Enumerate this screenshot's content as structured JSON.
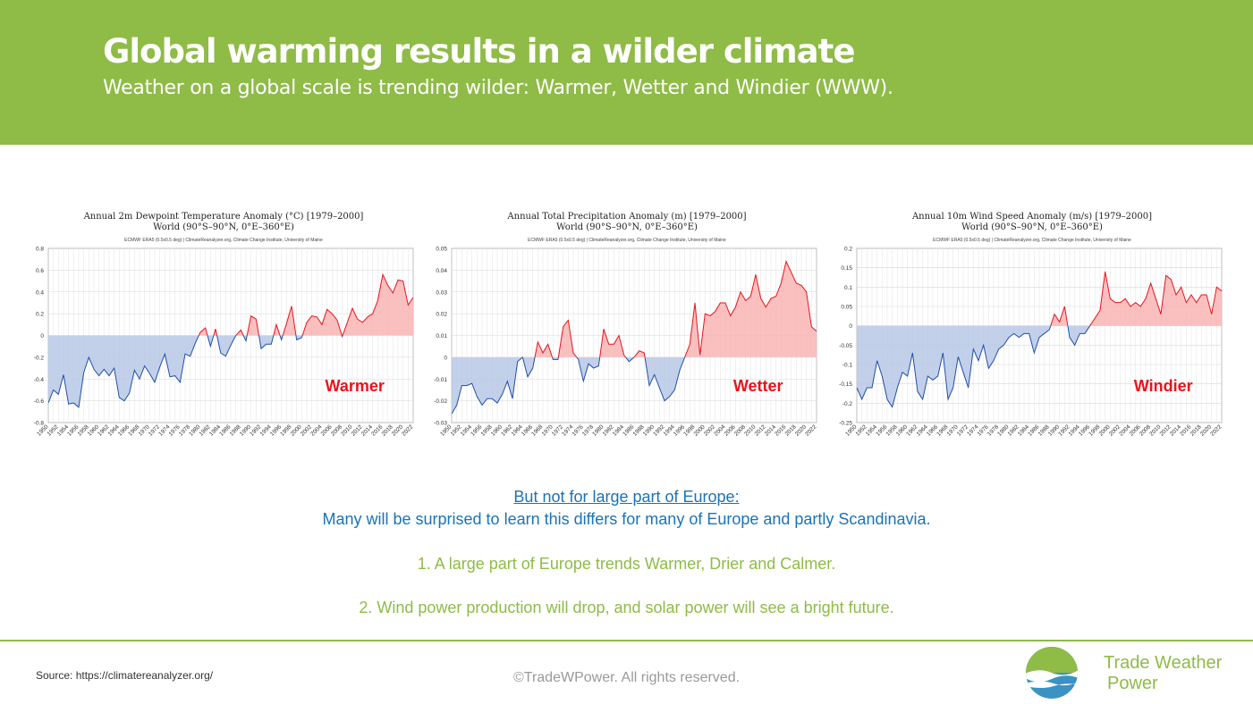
{
  "header": {
    "title": "Global warming results in a wilder climate",
    "subtitle": "Weather on a global scale is trending wilder: Warmer, Wetter and Windier (WWW)."
  },
  "colors": {
    "header_bg": "#8fbb47",
    "positive_line": "#e8141b",
    "negative_line": "#1f4fa8",
    "positive_fill": "#f9b5b5",
    "negative_fill": "#b8c8e6",
    "callout": "#e8141b",
    "link_blue": "#1a73b8"
  },
  "chart_data": [
    {
      "type": "area",
      "title": "Annual 2m Dewpoint Temperature Anomaly (°C) [1979–2000]",
      "subtitle": "World (90°S–90°N, 0°E–360°E)",
      "source": "ECMWF ERA5 (0.5x0.5 deg) | ClimateReanalyzer.org, Climate Change Institute, University of Maine",
      "callout": "Warmer",
      "x_start": 1950,
      "x_end": 2022,
      "ylim": [
        -0.8,
        0.8
      ],
      "yticks": [
        "0.8",
        "0.6",
        "0.4",
        "0.2",
        "0",
        "-0.2",
        "-0.4",
        "-0.6",
        "-0.8"
      ],
      "grid": true,
      "values": [
        -0.62,
        -0.5,
        -0.54,
        -0.36,
        -0.63,
        -0.62,
        -0.66,
        -0.34,
        -0.2,
        -0.31,
        -0.37,
        -0.31,
        -0.37,
        -0.3,
        -0.57,
        -0.6,
        -0.53,
        -0.32,
        -0.4,
        -0.28,
        -0.35,
        -0.43,
        -0.29,
        -0.17,
        -0.38,
        -0.37,
        -0.43,
        -0.17,
        -0.19,
        -0.07,
        0.03,
        0.07,
        -0.1,
        0.06,
        -0.16,
        -0.19,
        -0.09,
        0.0,
        0.05,
        -0.05,
        0.18,
        0.15,
        -0.12,
        -0.08,
        -0.08,
        0.1,
        -0.04,
        0.11,
        0.27,
        -0.04,
        -0.02,
        0.12,
        0.18,
        0.17,
        0.1,
        0.24,
        0.2,
        0.14,
        -0.01,
        0.12,
        0.25,
        0.15,
        0.12,
        0.17,
        0.2,
        0.32,
        0.56,
        0.46,
        0.39,
        0.51,
        0.5,
        0.28,
        0.35
      ]
    },
    {
      "type": "area",
      "title": "Annual Total Precipitation Anomaly (m) [1979–2000]",
      "subtitle": "World (90°S–90°N, 0°E–360°E)",
      "source": "ECMWF ERA5 (0.5x0.5 deg) | ClimateReanalyzer.org, Climate Change Institute, University of Maine",
      "callout": "Wetter",
      "x_start": 1950,
      "x_end": 2022,
      "ylim": [
        -0.03,
        0.05
      ],
      "yticks": [
        "0.05",
        "0.04",
        "0.03",
        "0.02",
        "0.01",
        "0",
        "-0.01",
        "-0.02",
        "-0.03"
      ],
      "grid": true,
      "values": [
        -0.026,
        -0.022,
        -0.013,
        -0.013,
        -0.012,
        -0.018,
        -0.022,
        -0.019,
        -0.019,
        -0.021,
        -0.017,
        -0.011,
        -0.019,
        -0.002,
        0.0,
        -0.009,
        -0.005,
        0.007,
        0.002,
        0.006,
        -0.001,
        -0.001,
        0.014,
        0.017,
        0.002,
        -0.001,
        -0.011,
        -0.003,
        -0.005,
        -0.004,
        0.013,
        0.006,
        0.006,
        0.01,
        0.001,
        -0.002,
        0.0,
        0.003,
        0.002,
        -0.013,
        -0.008,
        -0.014,
        -0.02,
        -0.018,
        -0.015,
        -0.006,
        0.0,
        0.006,
        0.025,
        0.001,
        0.02,
        0.019,
        0.021,
        0.025,
        0.025,
        0.019,
        0.023,
        0.03,
        0.026,
        0.028,
        0.038,
        0.027,
        0.023,
        0.027,
        0.028,
        0.034,
        0.044,
        0.039,
        0.034,
        0.033,
        0.03,
        0.014,
        0.012
      ]
    },
    {
      "type": "area",
      "title": "Annual 10m Wind Speed Anomaly (m/s) [1979–2000]",
      "subtitle": "World (90°S–90°N, 0°E–360°E)",
      "source": "ECMWF ERA5 (0.5x0.5 deg) | ClimateReanalyzer.org, Climate Change Institute, University of Maine",
      "callout": "Windier",
      "x_start": 1950,
      "x_end": 2022,
      "ylim": [
        -0.25,
        0.2
      ],
      "yticks": [
        "0.2",
        "0.15",
        "0.1",
        "0.05",
        "0",
        "-0.05",
        "-0.1",
        "-0.15",
        "-0.2",
        "-0.25"
      ],
      "grid": true,
      "values": [
        -0.16,
        -0.19,
        -0.16,
        -0.16,
        -0.09,
        -0.13,
        -0.19,
        -0.21,
        -0.16,
        -0.12,
        -0.13,
        -0.07,
        -0.17,
        -0.19,
        -0.13,
        -0.14,
        -0.13,
        -0.07,
        -0.19,
        -0.16,
        -0.08,
        -0.12,
        -0.16,
        -0.06,
        -0.09,
        -0.05,
        -0.11,
        -0.09,
        -0.06,
        -0.05,
        -0.03,
        -0.02,
        -0.03,
        -0.02,
        -0.02,
        -0.07,
        -0.03,
        -0.02,
        -0.01,
        0.03,
        0.01,
        0.05,
        -0.03,
        -0.05,
        -0.02,
        -0.02,
        0.0,
        0.02,
        0.04,
        0.14,
        0.07,
        0.06,
        0.06,
        0.07,
        0.05,
        0.06,
        0.05,
        0.07,
        0.11,
        0.07,
        0.03,
        0.13,
        0.12,
        0.08,
        0.1,
        0.06,
        0.08,
        0.06,
        0.08,
        0.08,
        0.03,
        0.1,
        0.09
      ]
    }
  ],
  "message": {
    "heading": "But not for large part of Europe:",
    "line": "Many will be surprised to learn this differs for many of Europe and partly Scandinavia.",
    "point1": "1. A large part of Europe trends Warmer, Drier and Calmer.",
    "point2": "2. Wind power production will drop, and solar power will see a bright future."
  },
  "footer": {
    "source": "Source: https://climatereanalyzer.org/",
    "copyright": "©TradeWPower. All rights reserved.",
    "brand_line1": "Trade Weather",
    "brand_line2": "Power",
    "logo_icon": "globe-wave-logo-icon"
  }
}
